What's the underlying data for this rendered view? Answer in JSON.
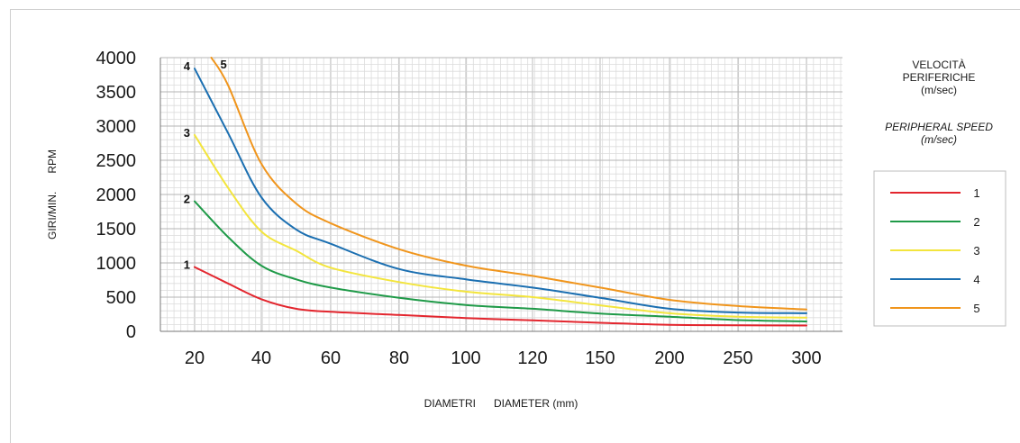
{
  "chart_data": {
    "type": "line",
    "ylabel": "GIRI/MIN.      RPM",
    "xlabel": "DIAMETRI      DIAMETER (mm)",
    "x_ticks": [
      "20",
      "40",
      "60",
      "80",
      "100",
      "120",
      "150",
      "200",
      "250",
      "300"
    ],
    "y_ticks": [
      "0",
      "500",
      "1000",
      "1500",
      "2000",
      "2500",
      "3000",
      "3500",
      "4000"
    ],
    "ylim": [
      0,
      4000
    ],
    "grid": true,
    "legend_position": "right",
    "legend_title_it": [
      "VELOCITÀ",
      "PERIFERICHE",
      "(m/sec)"
    ],
    "legend_title_en": [
      "PERIPHERAL SPEED",
      "(m/sec)"
    ],
    "series": [
      {
        "name": "1",
        "color": "#e3262e",
        "points": [
          [
            20,
            940
          ],
          [
            30,
            700
          ],
          [
            40,
            470
          ],
          [
            50,
            330
          ],
          [
            60,
            285
          ],
          [
            80,
            240
          ],
          [
            100,
            195
          ],
          [
            120,
            160
          ],
          [
            150,
            125
          ],
          [
            200,
            95
          ],
          [
            250,
            90
          ],
          [
            300,
            85
          ]
        ]
      },
      {
        "name": "2",
        "color": "#1f9a48",
        "points": [
          [
            20,
            1900
          ],
          [
            30,
            1380
          ],
          [
            40,
            960
          ],
          [
            50,
            760
          ],
          [
            60,
            640
          ],
          [
            80,
            490
          ],
          [
            100,
            385
          ],
          [
            120,
            330
          ],
          [
            150,
            260
          ],
          [
            200,
            215
          ],
          [
            250,
            165
          ],
          [
            300,
            145
          ]
        ]
      },
      {
        "name": "3",
        "color": "#f3e53d",
        "points": [
          [
            20,
            2870
          ],
          [
            30,
            2100
          ],
          [
            40,
            1460
          ],
          [
            50,
            1180
          ],
          [
            60,
            930
          ],
          [
            80,
            720
          ],
          [
            100,
            580
          ],
          [
            120,
            500
          ],
          [
            150,
            380
          ],
          [
            200,
            265
          ],
          [
            250,
            215
          ],
          [
            300,
            200
          ]
        ]
      },
      {
        "name": "4",
        "color": "#1b6fb1",
        "points": [
          [
            20,
            3840
          ],
          [
            30,
            2900
          ],
          [
            40,
            1960
          ],
          [
            50,
            1490
          ],
          [
            60,
            1280
          ],
          [
            80,
            910
          ],
          [
            100,
            760
          ],
          [
            120,
            640
          ],
          [
            150,
            490
          ],
          [
            200,
            330
          ],
          [
            250,
            275
          ],
          [
            300,
            265
          ]
        ]
      },
      {
        "name": "5",
        "color": "#f0951c",
        "points": [
          [
            25,
            4000
          ],
          [
            30,
            3600
          ],
          [
            40,
            2450
          ],
          [
            50,
            1870
          ],
          [
            60,
            1580
          ],
          [
            80,
            1200
          ],
          [
            100,
            960
          ],
          [
            120,
            810
          ],
          [
            150,
            640
          ],
          [
            200,
            460
          ],
          [
            250,
            370
          ],
          [
            300,
            320
          ]
        ]
      }
    ]
  }
}
